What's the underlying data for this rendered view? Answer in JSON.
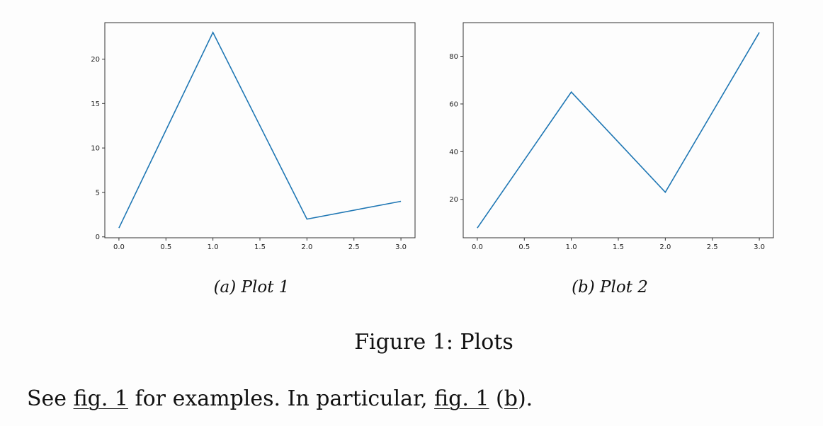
{
  "chart_data": [
    {
      "type": "line",
      "caption": "(a) Plot 1",
      "x": [
        0,
        1,
        2,
        3
      ],
      "series": [
        {
          "values": [
            1,
            23,
            2,
            4
          ],
          "color": "#1f77b4"
        }
      ],
      "xticks": [
        "0.0",
        "0.5",
        "1.0",
        "1.5",
        "2.0",
        "2.5",
        "3.0"
      ],
      "yticks": [
        "0",
        "5",
        "10",
        "15",
        "20"
      ],
      "xlim": [
        -0.15,
        3.15
      ],
      "ylim": [
        -0.1,
        24.1
      ],
      "grid": false,
      "title": "",
      "xlabel": "",
      "ylabel": ""
    },
    {
      "type": "line",
      "caption": "(b) Plot 2",
      "x": [
        0,
        1,
        2,
        3
      ],
      "series": [
        {
          "values": [
            8,
            65,
            23,
            90
          ],
          "color": "#1f77b4"
        }
      ],
      "xticks": [
        "0.0",
        "0.5",
        "1.0",
        "1.5",
        "2.0",
        "2.5",
        "3.0"
      ],
      "yticks": [
        "20",
        "40",
        "60",
        "80"
      ],
      "xlim": [
        -0.15,
        3.15
      ],
      "ylim": [
        3.9,
        94.1
      ],
      "grid": false,
      "title": "",
      "xlabel": "",
      "ylabel": ""
    }
  ],
  "figure": {
    "caption": "Figure 1: Plots"
  },
  "paragraph": {
    "text1": "See ",
    "ref1": "fig. 1",
    "text2": " for examples. In particular, ",
    "ref2a": "fig. 1",
    "text3": " (",
    "ref2b": "b",
    "text4": ")."
  }
}
